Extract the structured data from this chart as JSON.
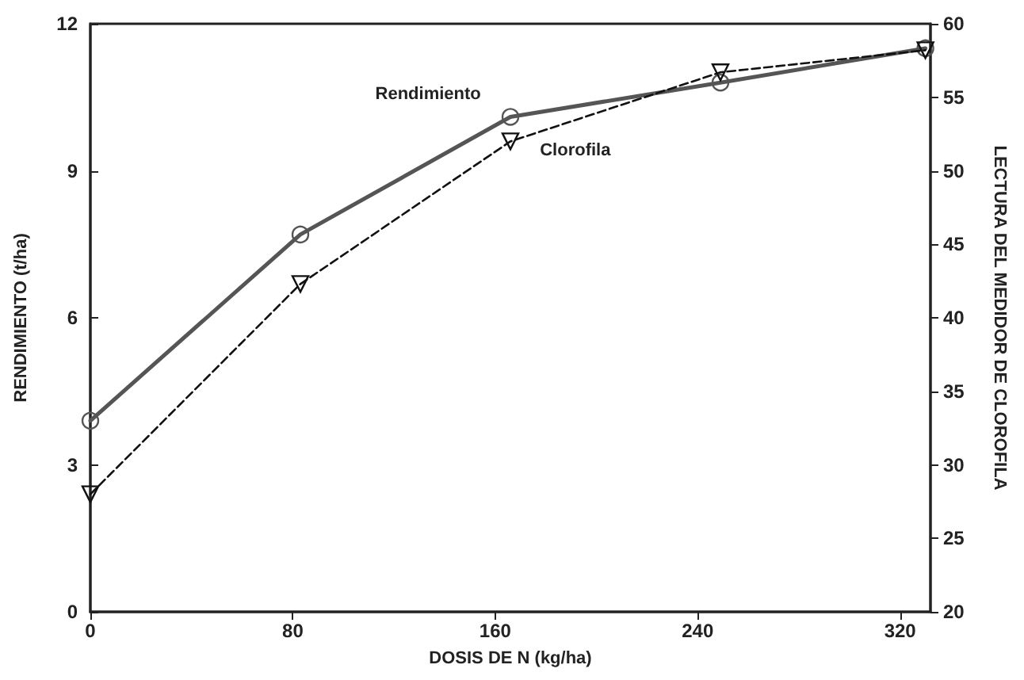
{
  "chart_data": {
    "type": "line",
    "xlabel": "DOSIS DE N (kg/ha)",
    "ylabel": "RENDIMIENTO (t/ha)",
    "y2label": "LECTURA DEL MEDIDOR DE CLOROFILA",
    "x": [
      0,
      83,
      166,
      249,
      330
    ],
    "series": [
      {
        "name": "Rendimiento",
        "color": "#555555",
        "values": [
          3.9,
          7.7,
          10.1,
          10.8,
          11.5
        ],
        "marker": "circle",
        "line_style": "solid"
      },
      {
        "name": "Clorofila",
        "color": "#111111",
        "values": [
          28,
          42.3,
          52,
          56.7,
          58.2
        ],
        "axis": "y2",
        "marker": "triangle",
        "line_style": "dashed"
      }
    ],
    "xlim": [
      0,
      332
    ],
    "xticks": [
      0,
      80,
      160,
      240,
      320
    ],
    "ylim": [
      0,
      12
    ],
    "yticks": [
      0,
      3,
      6,
      9,
      12
    ],
    "y2lim": [
      20,
      60
    ],
    "y2ticks": [
      20,
      25,
      30,
      35,
      40,
      45,
      50,
      55,
      60
    ],
    "grid": false,
    "legend": false
  }
}
